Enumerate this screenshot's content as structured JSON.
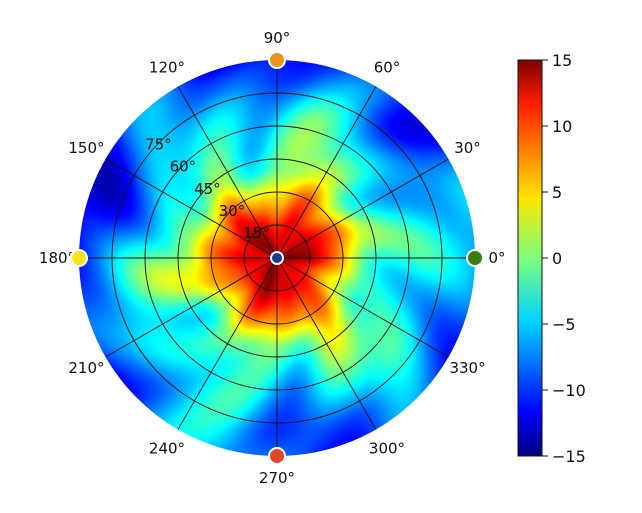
{
  "chart_data": {
    "type": "heatmap",
    "subtype": "polar",
    "title": "",
    "angular_ticks": [
      "0°",
      "30°",
      "60°",
      "90°",
      "120°",
      "150°",
      "180°",
      "210°",
      "240°",
      "270°",
      "300°",
      "330°"
    ],
    "radial_ticks": [
      "15°",
      "30°",
      "45°",
      "60°",
      "75°"
    ],
    "radial_range": [
      0,
      90
    ],
    "colorbar": {
      "ticks": [
        "15",
        "10",
        "5",
        "0",
        "−5",
        "−10",
        "−15"
      ],
      "range": [
        -15,
        15
      ],
      "colormap": "jet"
    },
    "grid": true,
    "field": {
      "center_value": 14,
      "radial_profile": [
        [
          0,
          14
        ],
        [
          15,
          12
        ],
        [
          30,
          6
        ],
        [
          40,
          0
        ],
        [
          50,
          -2
        ],
        [
          65,
          -4
        ],
        [
          80,
          -7
        ],
        [
          90,
          -8
        ]
      ]
    },
    "edge_markers": [
      {
        "angle": 0,
        "color": "#3a7d10"
      },
      {
        "angle": 90,
        "color": "#e8941e"
      },
      {
        "angle": 180,
        "color": "#f4e61c"
      },
      {
        "angle": 270,
        "color": "#e5462a"
      }
    ],
    "center_marker": {
      "color": "#1a3a8a"
    }
  }
}
